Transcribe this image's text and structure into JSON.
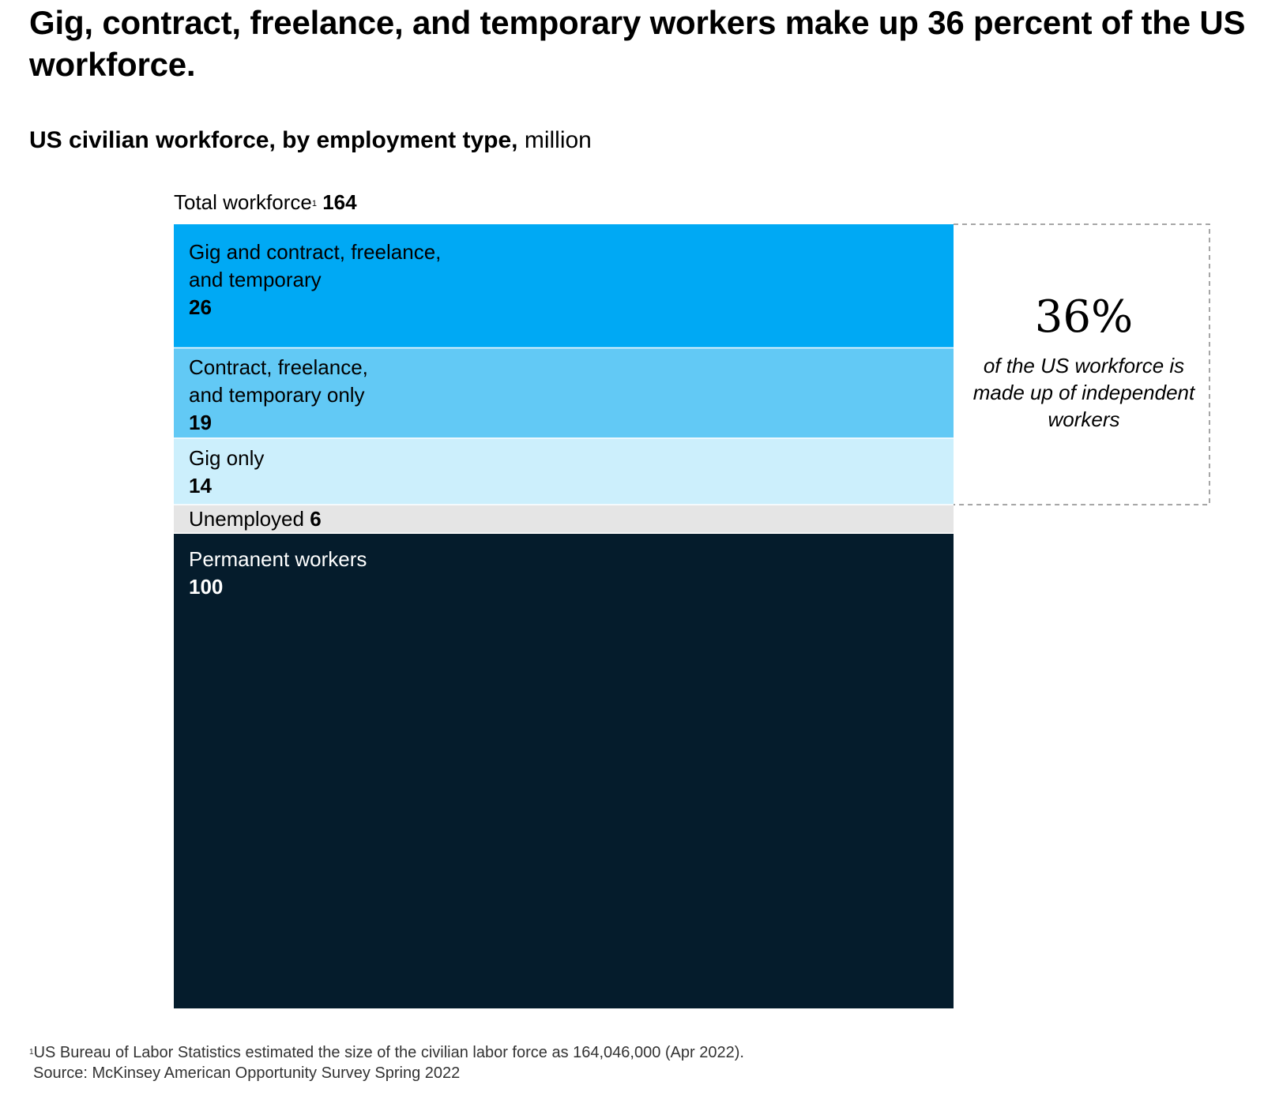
{
  "title": "Gig, contract, freelance, and temporary workers make up 36 percent of the US workforce.",
  "subtitle": {
    "bold": "US civilian workforce, by employment type,",
    "unit": " million"
  },
  "total": {
    "label": "Total workforce",
    "footnote_marker": "1",
    "value": "164"
  },
  "chart_data": {
    "type": "bar",
    "orientation": "stacked-vertical-single",
    "title": "US civilian workforce, by employment type, million",
    "total": 164,
    "categories": [
      "Gig and contract, freelance, and temporary",
      "Contract, freelance, and temporary only",
      "Gig only",
      "Unemployed",
      "Permanent workers"
    ],
    "values": [
      26,
      19,
      14,
      6,
      100
    ],
    "colors": [
      "#00a9f4",
      "#62c9f5",
      "#cceffc",
      "#e5e5e5",
      "#051c2c"
    ],
    "segments": [
      {
        "name_lines": [
          "Gig and contract, freelance,",
          "and temporary"
        ],
        "value": "26",
        "text": "dark"
      },
      {
        "name_lines": [
          "Contract, freelance,",
          "and temporary only"
        ],
        "value": "19",
        "text": "dark"
      },
      {
        "name_lines": [
          "Gig only"
        ],
        "value": "14",
        "text": "dark"
      },
      {
        "name_lines": [
          "Unemployed"
        ],
        "value": "6",
        "text": "dark",
        "inline": true
      },
      {
        "name_lines": [
          "Permanent workers"
        ],
        "value": "100",
        "text": "light"
      }
    ],
    "bracket_segments": 3
  },
  "callout": {
    "percent": "36%",
    "text": "of the US workforce is made up of independent workers"
  },
  "footnote": {
    "marker": "1",
    "text": "US Bureau of Labor Statistics estimated the size of the civilian labor force as 164,046,000 (Apr 2022).",
    "source": "Source: McKinsey American Opportunity Survey Spring 2022"
  }
}
